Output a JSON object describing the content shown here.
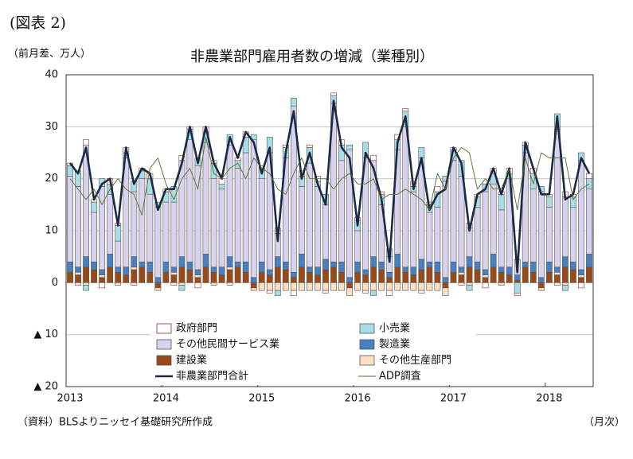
{
  "header": {
    "figure_no": "(図表 2)"
  },
  "chart_data": {
    "type": "bar",
    "title": "非農業部門雇用者数の増減（業種別）",
    "y_label": "（前月差、万人）",
    "source": "（資料）BLSよりニッセイ基礎研究所作成",
    "x_note": "（月次）",
    "categories": [
      "2013",
      null,
      null,
      null,
      null,
      null,
      null,
      null,
      null,
      null,
      null,
      null,
      "2014",
      null,
      null,
      null,
      null,
      null,
      null,
      null,
      null,
      null,
      null,
      null,
      "2015",
      null,
      null,
      null,
      null,
      null,
      null,
      null,
      null,
      null,
      null,
      null,
      "2016",
      null,
      null,
      null,
      null,
      null,
      null,
      null,
      null,
      null,
      null,
      null,
      "2017",
      null,
      null,
      null,
      null,
      null,
      null,
      null,
      null,
      null,
      null,
      null,
      "2018",
      null,
      null,
      null,
      null,
      null
    ],
    "ylim": [
      -20,
      40
    ],
    "yticks": [
      {
        "value": -20,
        "label": "▲ 20"
      },
      {
        "value": -10,
        "label": "▲ 10"
      },
      0,
      10,
      20,
      30,
      40
    ],
    "grid": true,
    "series": [
      {
        "name": "政府部門",
        "color": "#ffffff",
        "values": [
          0.5,
          -0.5,
          1,
          0.5,
          -1,
          1,
          0.5,
          1,
          -0.5,
          0.5,
          1,
          0,
          0.5,
          -0.5,
          1,
          0.5,
          -1,
          1,
          0.5,
          1,
          -0.5,
          0.5,
          1,
          0,
          0.5,
          -0.5,
          1,
          0.5,
          -1,
          1,
          0.5,
          1,
          -0.5,
          0.5,
          1,
          0,
          0.5,
          -0.5,
          1,
          0.5,
          -1,
          1,
          0.5,
          1,
          -0.5,
          0.5,
          1,
          0,
          0.5,
          -0.5,
          1,
          0.5,
          -1,
          1,
          0.5,
          1,
          -0.5,
          0.5,
          1,
          0,
          0.5,
          -0.5,
          1,
          0.5,
          -1,
          1
        ]
      },
      {
        "name": "小売業",
        "color": "#a8dde6",
        "values": [
          2,
          3,
          -1,
          2,
          1.5,
          2,
          3,
          1,
          2,
          1.5,
          3,
          1,
          2,
          3,
          -1,
          2,
          1.5,
          2,
          3,
          1,
          2,
          1.5,
          3,
          1,
          2,
          3,
          -1,
          2,
          1.5,
          2,
          3,
          1,
          2,
          1.5,
          3,
          1,
          2,
          3,
          -1,
          2,
          1.5,
          2,
          3,
          1,
          2,
          1.5,
          3,
          1,
          2,
          3,
          -1,
          2,
          1.5,
          2,
          3,
          1,
          -2,
          1.5,
          3,
          1,
          2,
          3,
          -1,
          2,
          1.5,
          2
        ]
      },
      {
        "name": "その他民間サービス業",
        "color": "#d9d2ec",
        "values": [
          16.5,
          15.5,
          21.5,
          9.5,
          16,
          11.5,
          5,
          21,
          12.5,
          16,
          13,
          13.5,
          11.5,
          12.5,
          18.5,
          23.5,
          20,
          21.5,
          17,
          15,
          21.5,
          18,
          21,
          26.5,
          16,
          22.5,
          4.5,
          20,
          32,
          13,
          20,
          15.5,
          10.5,
          30.5,
          19.5,
          24.5,
          6,
          21.5,
          18.5,
          11,
          3,
          20,
          27,
          14.5,
          19.5,
          9.5,
          10.5,
          18.5,
          19.5,
          17.5,
          5.5,
          10.5,
          15,
          13.5,
          11,
          17,
          3,
          21,
          14,
          16.5,
          10.5,
          26.5,
          11.5,
          10.5,
          21,
          12.5
        ]
      },
      {
        "name": "製造業",
        "color": "#4a7fc1",
        "values": [
          2,
          1,
          2,
          1.5,
          1,
          2.5,
          1,
          1.5,
          2,
          1,
          2,
          1,
          2,
          1,
          2,
          1.5,
          1,
          2.5,
          1,
          1.5,
          2,
          1,
          2,
          1,
          2,
          1,
          2,
          1.5,
          1,
          2.5,
          1,
          1.5,
          2,
          1,
          2,
          1,
          2,
          1,
          2,
          1.5,
          1,
          2.5,
          1,
          1.5,
          2,
          1,
          2,
          1,
          2,
          1,
          2,
          1.5,
          1,
          2.5,
          1,
          1.5,
          1,
          1,
          2,
          1,
          2,
          1,
          2,
          1.5,
          1,
          2.5
        ]
      },
      {
        "name": "建設業",
        "color": "#9a4a17",
        "values": [
          2,
          1.5,
          3,
          2.5,
          1,
          3,
          2,
          1.5,
          2.5,
          3,
          2,
          -1,
          2,
          1.5,
          3,
          2.5,
          1,
          3,
          2,
          1.5,
          2.5,
          3,
          2,
          -1,
          2,
          1.5,
          3,
          2.5,
          1,
          3,
          2,
          1.5,
          2.5,
          3,
          2,
          -1,
          2,
          1.5,
          3,
          2.5,
          1,
          3,
          2,
          1.5,
          2.5,
          3,
          2,
          -1,
          2,
          1.5,
          3,
          2.5,
          1,
          3,
          2,
          1.5,
          0.5,
          3,
          2,
          -1,
          2,
          1.5,
          3,
          2.5,
          1,
          3
        ]
      },
      {
        "name": "その他生産部門",
        "color": "#fbe0c4",
        "values": [
          0,
          0.5,
          -0.5,
          0,
          0.5,
          0,
          -0.5,
          0,
          0.5,
          0,
          0,
          -0.5,
          0,
          0.5,
          -0.5,
          0,
          0.5,
          0,
          -0.5,
          0,
          0.5,
          0,
          0,
          -0.5,
          -1.5,
          -1.5,
          -1.5,
          -1.5,
          -1.5,
          -1.5,
          -1.5,
          -1.5,
          -1.5,
          -1.5,
          -1.5,
          -1.5,
          -1.5,
          -1.5,
          -1.5,
          -1.5,
          -1.5,
          -1.5,
          -1.5,
          -1.5,
          -1.5,
          -1.5,
          -1.5,
          -1.5,
          0,
          0.5,
          -0.5,
          0,
          0.5,
          0,
          -0.5,
          0,
          0,
          0,
          0,
          -0.5,
          0,
          0.5,
          -0.5,
          0,
          0.5,
          0
        ]
      },
      {
        "name": "非農業部門合計",
        "type": "line",
        "color": "#1a2a44",
        "values": [
          23,
          21,
          26,
          16,
          19,
          20,
          11,
          26,
          19,
          22,
          21,
          14,
          18,
          18,
          23,
          30,
          23,
          30,
          23,
          20,
          28,
          24,
          29,
          27,
          21,
          26,
          8,
          25,
          33,
          20,
          25,
          19,
          15,
          35,
          26,
          24,
          11,
          25,
          22,
          16,
          4,
          27,
          32,
          18,
          24,
          14,
          17,
          18,
          26,
          23,
          10,
          17,
          18,
          22,
          17,
          22,
          2,
          27,
          22,
          17,
          17,
          32,
          16,
          17,
          24,
          21
        ]
      },
      {
        "name": "ADP調査",
        "type": "line",
        "color": "#556b2f",
        "values": [
          20,
          18,
          16,
          18,
          15,
          18,
          20,
          18,
          17,
          13,
          22,
          24,
          19,
          16,
          20,
          22,
          18,
          28,
          21,
          20,
          22,
          23,
          20,
          24,
          22,
          21,
          18,
          17,
          21,
          24,
          20,
          20,
          20,
          18,
          20,
          21,
          19,
          19,
          20,
          16,
          17,
          17,
          18,
          17,
          16,
          14,
          21,
          18,
          24,
          26,
          25,
          18,
          20,
          18,
          18,
          22,
          14,
          24,
          19,
          25,
          24,
          24,
          24,
          16,
          18,
          19
        ]
      }
    ]
  }
}
